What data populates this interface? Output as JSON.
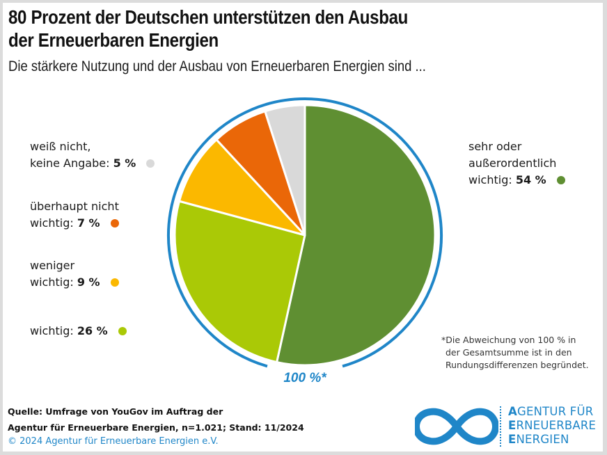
{
  "header": {
    "title_line1": "80 Prozent der Deutschen unterstützen den Ausbau",
    "title_line2": "der Erneuerbaren Energien",
    "subtitle": "Die stärkere Nutzung und der Ausbau von Erneuerbaren Energien sind ..."
  },
  "chart_data": {
    "type": "pie",
    "title": "80 Prozent der Deutschen unterstützen den Ausbau der Erneuerbaren Energien",
    "subtitle": "Die stärkere Nutzung und der Ausbau von Erneuerbaren Energien sind ...",
    "start_angle": "12 o'clock, clockwise",
    "total_label": "100 %*",
    "slices": [
      {
        "key": "sehr_wichtig",
        "label_line1": "sehr oder",
        "label_line2": "außerordentlich",
        "label_line3": "wichtig:",
        "value": 54,
        "value_label": "54 %",
        "color": "#5f8f32"
      },
      {
        "key": "wichtig",
        "label_line1": "wichtig:",
        "value": 26,
        "value_label": "26 %",
        "color": "#aac906"
      },
      {
        "key": "weniger_wichtig",
        "label_line1": "weniger",
        "label_line2": "wichtig:",
        "value": 9,
        "value_label": "9 %",
        "color": "#fbb800"
      },
      {
        "key": "ueberhaupt_nicht_wichtig",
        "label_line1": "überhaupt nicht",
        "label_line2": "wichtig:",
        "value": 7,
        "value_label": "7 %",
        "color": "#ea6708"
      },
      {
        "key": "weiss_nicht",
        "label_line1": "weiß nicht,",
        "label_line2": "keine Angabe:",
        "value": 5,
        "value_label": "5 %",
        "color": "#d9d9d9"
      }
    ],
    "ring_color": "#1f86c8"
  },
  "footnote": {
    "line1": "*Die Abweichung von 100 % in",
    "line2": "der Gesamtsumme ist in den",
    "line3": "Rundungsdifferenzen begründet."
  },
  "source": {
    "line1": "Quelle: Umfrage von YouGov im Auftrag der",
    "line2": "Agentur für Erneuerbare Energien, n=1.021; Stand: 11/2024"
  },
  "copyright": "© 2024 Agentur für Erneuerbare Energien e.V.",
  "logo": {
    "line1_initial": "A",
    "line1_rest": "GENTUR FÜR",
    "line2_initial": "E",
    "line2_rest": "RNEUERBARE",
    "line3_initial": "E",
    "line3_rest": "NERGIEN",
    "color": "#1f86c8"
  }
}
